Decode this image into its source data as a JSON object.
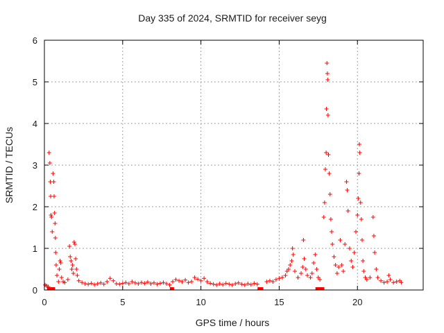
{
  "chart_data": {
    "type": "scatter",
    "title": "Day 335 of 2024, SRMTID for receiver seyg",
    "xlabel": "GPS time / hours",
    "ylabel": "SRMTID / TECUs",
    "xlim": [
      0,
      24.2
    ],
    "ylim": [
      0,
      6
    ],
    "xticks": [
      0,
      5,
      10,
      15,
      20
    ],
    "xtick_labels": [
      "0",
      "5",
      "10",
      "15",
      "20"
    ],
    "yticks": [
      0,
      1,
      2,
      3,
      4,
      5,
      6
    ],
    "ytick_labels": [
      "0",
      "1",
      "2",
      "3",
      "4",
      "5",
      "6"
    ],
    "grid": true,
    "marker": "+",
    "color": "#ff0000",
    "series": [
      {
        "name": "SRMTID",
        "points": [
          [
            0.05,
            0.12
          ],
          [
            0.15,
            0.1
          ],
          [
            0.25,
            0.08
          ],
          [
            0.3,
            3.3
          ],
          [
            0.35,
            3.05
          ],
          [
            0.38,
            2.6
          ],
          [
            0.4,
            2.25
          ],
          [
            0.42,
            1.8
          ],
          [
            0.45,
            1.75
          ],
          [
            0.5,
            1.4
          ],
          [
            0.55,
            2.8
          ],
          [
            0.6,
            2.6
          ],
          [
            0.62,
            2.25
          ],
          [
            0.65,
            1.85
          ],
          [
            0.68,
            1.6
          ],
          [
            0.7,
            1.25
          ],
          [
            0.72,
            0.9
          ],
          [
            0.75,
            0.6
          ],
          [
            0.8,
            0.35
          ],
          [
            0.9,
            0.2
          ],
          [
            0.95,
            0.5
          ],
          [
            1.0,
            0.7
          ],
          [
            1.05,
            0.65
          ],
          [
            1.1,
            0.3
          ],
          [
            1.2,
            0.2
          ],
          [
            1.3,
            0.18
          ],
          [
            1.5,
            0.25
          ],
          [
            1.6,
            1.05
          ],
          [
            1.65,
            0.8
          ],
          [
            1.7,
            0.7
          ],
          [
            1.75,
            0.5
          ],
          [
            1.8,
            0.6
          ],
          [
            1.85,
            0.4
          ],
          [
            1.9,
            1.15
          ],
          [
            1.95,
            1.1
          ],
          [
            2.0,
            0.75
          ],
          [
            2.05,
            0.5
          ],
          [
            2.1,
            0.35
          ],
          [
            2.2,
            0.22
          ],
          [
            2.4,
            0.18
          ],
          [
            2.6,
            0.15
          ],
          [
            2.8,
            0.14
          ],
          [
            3.0,
            0.16
          ],
          [
            3.2,
            0.13
          ],
          [
            3.4,
            0.15
          ],
          [
            3.6,
            0.17
          ],
          [
            3.8,
            0.14
          ],
          [
            4.0,
            0.2
          ],
          [
            4.2,
            0.28
          ],
          [
            4.4,
            0.22
          ],
          [
            4.6,
            0.15
          ],
          [
            4.8,
            0.14
          ],
          [
            5.0,
            0.16
          ],
          [
            5.2,
            0.18
          ],
          [
            5.4,
            0.15
          ],
          [
            5.6,
            0.2
          ],
          [
            5.8,
            0.17
          ],
          [
            6.0,
            0.15
          ],
          [
            6.2,
            0.18
          ],
          [
            6.4,
            0.16
          ],
          [
            6.6,
            0.19
          ],
          [
            6.8,
            0.15
          ],
          [
            7.0,
            0.17
          ],
          [
            7.2,
            0.14
          ],
          [
            7.4,
            0.16
          ],
          [
            7.6,
            0.18
          ],
          [
            7.8,
            0.15
          ],
          [
            8.0,
            0.12
          ],
          [
            8.2,
            0.2
          ],
          [
            8.4,
            0.25
          ],
          [
            8.6,
            0.22
          ],
          [
            8.8,
            0.2
          ],
          [
            9.0,
            0.24
          ],
          [
            9.2,
            0.18
          ],
          [
            9.4,
            0.2
          ],
          [
            9.6,
            0.3
          ],
          [
            9.8,
            0.26
          ],
          [
            10.0,
            0.22
          ],
          [
            10.2,
            0.28
          ],
          [
            10.4,
            0.2
          ],
          [
            10.6,
            0.16
          ],
          [
            10.8,
            0.14
          ],
          [
            11.0,
            0.12
          ],
          [
            11.2,
            0.15
          ],
          [
            11.4,
            0.13
          ],
          [
            11.6,
            0.16
          ],
          [
            11.8,
            0.14
          ],
          [
            12.0,
            0.12
          ],
          [
            12.2,
            0.15
          ],
          [
            12.4,
            0.17
          ],
          [
            12.6,
            0.14
          ],
          [
            12.8,
            0.12
          ],
          [
            13.0,
            0.15
          ],
          [
            13.2,
            0.13
          ],
          [
            13.4,
            0.16
          ],
          [
            13.6,
            0.14
          ],
          [
            14.2,
            0.2
          ],
          [
            14.4,
            0.22
          ],
          [
            14.6,
            0.2
          ],
          [
            14.8,
            0.25
          ],
          [
            15.0,
            0.28
          ],
          [
            15.2,
            0.3
          ],
          [
            15.4,
            0.35
          ],
          [
            15.5,
            0.45
          ],
          [
            15.6,
            0.5
          ],
          [
            15.7,
            0.6
          ],
          [
            15.8,
            0.7
          ],
          [
            15.85,
            1.0
          ],
          [
            15.9,
            0.85
          ],
          [
            16.0,
            0.45
          ],
          [
            16.2,
            0.3
          ],
          [
            16.4,
            0.4
          ],
          [
            16.5,
            0.55
          ],
          [
            16.55,
            1.2
          ],
          [
            16.6,
            0.75
          ],
          [
            16.7,
            0.5
          ],
          [
            16.8,
            0.35
          ],
          [
            17.0,
            0.3
          ],
          [
            17.1,
            0.4
          ],
          [
            17.2,
            0.65
          ],
          [
            17.3,
            0.85
          ],
          [
            17.4,
            0.5
          ],
          [
            17.5,
            0.3
          ],
          [
            17.6,
            0.25
          ],
          [
            17.85,
            1.75
          ],
          [
            17.9,
            2.1
          ],
          [
            17.95,
            2.9
          ],
          [
            18.0,
            3.3
          ],
          [
            18.02,
            4.35
          ],
          [
            18.05,
            5.45
          ],
          [
            18.08,
            5.2
          ],
          [
            18.1,
            5.05
          ],
          [
            18.12,
            4.2
          ],
          [
            18.15,
            3.25
          ],
          [
            18.2,
            2.8
          ],
          [
            18.25,
            2.3
          ],
          [
            18.3,
            1.7
          ],
          [
            18.35,
            1.4
          ],
          [
            18.4,
            1.1
          ],
          [
            18.5,
            0.8
          ],
          [
            18.6,
            0.6
          ],
          [
            18.7,
            0.4
          ],
          [
            18.8,
            0.55
          ],
          [
            18.9,
            1.2
          ],
          [
            19.0,
            0.6
          ],
          [
            19.1,
            0.45
          ],
          [
            19.2,
            1.1
          ],
          [
            19.3,
            2.6
          ],
          [
            19.35,
            2.4
          ],
          [
            19.4,
            1.9
          ],
          [
            19.5,
            1.0
          ],
          [
            19.6,
            0.7
          ],
          [
            19.7,
            0.55
          ],
          [
            19.8,
            0.9
          ],
          [
            19.9,
            1.4
          ],
          [
            20.0,
            1.8
          ],
          [
            20.05,
            2.2
          ],
          [
            20.1,
            2.8
          ],
          [
            20.12,
            3.5
          ],
          [
            20.15,
            3.3
          ],
          [
            20.2,
            2.1
          ],
          [
            20.25,
            1.7
          ],
          [
            20.3,
            1.2
          ],
          [
            20.35,
            0.7
          ],
          [
            20.4,
            0.45
          ],
          [
            20.5,
            0.3
          ],
          [
            20.6,
            0.25
          ],
          [
            20.8,
            0.3
          ],
          [
            21.0,
            1.75
          ],
          [
            21.05,
            1.3
          ],
          [
            21.1,
            0.9
          ],
          [
            21.2,
            0.5
          ],
          [
            21.3,
            0.3
          ],
          [
            21.5,
            0.22
          ],
          [
            21.7,
            0.18
          ],
          [
            21.9,
            0.2
          ],
          [
            22.0,
            0.35
          ],
          [
            22.1,
            0.25
          ],
          [
            22.3,
            0.18
          ],
          [
            22.5,
            0.2
          ],
          [
            22.7,
            0.22
          ],
          [
            22.8,
            0.18
          ]
        ]
      }
    ],
    "zero_points": [
      0.3,
      0.55,
      8.15,
      13.75,
      13.85,
      17.45,
      17.55,
      17.65,
      17.75
    ]
  }
}
